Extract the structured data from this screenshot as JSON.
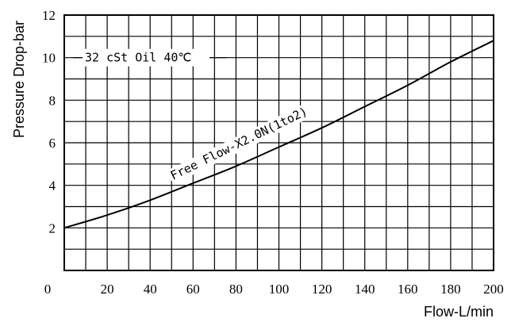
{
  "chart_data": {
    "type": "line",
    "title": "",
    "xlabel": "Flow-L/min",
    "ylabel": "Pressure Drop-bar",
    "xlim": [
      0,
      200
    ],
    "ylim": [
      0,
      12
    ],
    "x_ticks": [
      "0",
      "20",
      "40",
      "60",
      "80",
      "100",
      "120",
      "140",
      "160",
      "180",
      "200"
    ],
    "y_ticks": [
      "2",
      "4",
      "6",
      "8",
      "10",
      "12"
    ],
    "grid": true,
    "annotations": {
      "condition": "32 cSt Oil 40℃",
      "curve_label": "Free Flow-X2.0N(1to2)"
    },
    "series": [
      {
        "name": "Free Flow-X2.0N(1to2)",
        "x": [
          0,
          20,
          40,
          60,
          80,
          100,
          120,
          140,
          160,
          180,
          200
        ],
        "y": [
          2.0,
          2.6,
          3.3,
          4.1,
          4.9,
          5.8,
          6.7,
          7.7,
          8.7,
          9.8,
          10.8
        ]
      }
    ]
  }
}
